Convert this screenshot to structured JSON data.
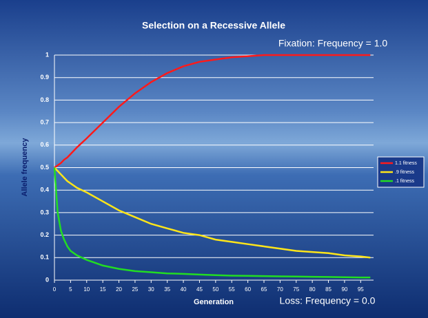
{
  "chart_data": {
    "type": "line",
    "title": "Selection on a Recessive Allele",
    "x_label": "Generation",
    "y_label": "Allele frequency",
    "annotations": [
      "Fixation: Frequency = 1.0",
      "Loss: Frequency = 0.0"
    ],
    "x": [
      0,
      1,
      2,
      3,
      4,
      5,
      7,
      10,
      15,
      20,
      25,
      30,
      35,
      40,
      45,
      50,
      55,
      60,
      65,
      70,
      75,
      80,
      85,
      90,
      95,
      98
    ],
    "series": [
      {
        "name": "1.1 fitness",
        "color": "#ff1a1a",
        "values": [
          0.5,
          0.51,
          0.52,
          0.535,
          0.545,
          0.56,
          0.59,
          0.63,
          0.7,
          0.77,
          0.83,
          0.88,
          0.92,
          0.95,
          0.97,
          0.98,
          0.99,
          0.995,
          1.0,
          1.0,
          1.0,
          1.0,
          1.0,
          1.0,
          1.0,
          1.0
        ]
      },
      {
        "name": ".9 fitness",
        "color": "#ffe619",
        "values": [
          0.5,
          0.485,
          0.47,
          0.455,
          0.44,
          0.43,
          0.41,
          0.39,
          0.35,
          0.31,
          0.28,
          0.25,
          0.23,
          0.21,
          0.2,
          0.18,
          0.17,
          0.16,
          0.15,
          0.14,
          0.13,
          0.125,
          0.12,
          0.11,
          0.105,
          0.1
        ]
      },
      {
        "name": ".1 fitness",
        "color": "#22dd22",
        "values": [
          0.5,
          0.3,
          0.22,
          0.18,
          0.15,
          0.13,
          0.11,
          0.09,
          0.065,
          0.05,
          0.04,
          0.035,
          0.03,
          0.028,
          0.025,
          0.022,
          0.02,
          0.019,
          0.018,
          0.017,
          0.016,
          0.015,
          0.014,
          0.013,
          0.012,
          0.012
        ]
      }
    ],
    "xlim": [
      0,
      99
    ],
    "xticks": [
      0,
      5,
      10,
      15,
      20,
      25,
      30,
      35,
      40,
      45,
      50,
      55,
      60,
      65,
      70,
      75,
      80,
      85,
      90,
      95
    ],
    "ylim": [
      0,
      1
    ],
    "yticks": [
      0,
      0.1,
      0.2,
      0.3,
      0.4,
      0.5,
      0.6,
      0.7,
      0.8,
      0.9,
      1
    ],
    "grid": true,
    "legend": "right"
  }
}
